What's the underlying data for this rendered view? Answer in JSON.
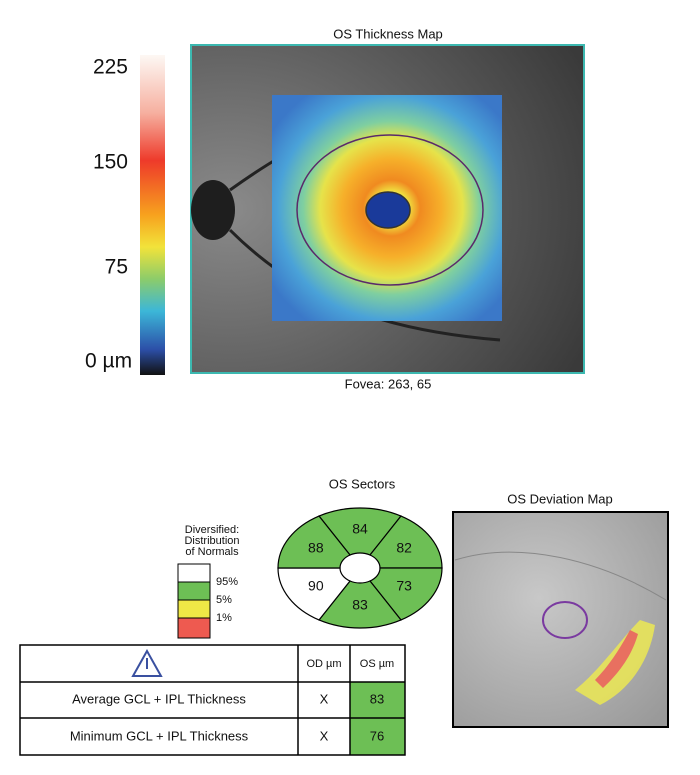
{
  "thickness_map": {
    "title": "OS Thickness Map",
    "fovea": "Fovea: 263, 65",
    "scale_labels": [
      "225",
      "150",
      "75",
      "0 µm"
    ]
  },
  "sectors": {
    "title": "OS Sectors",
    "values": [
      84,
      82,
      73,
      83,
      90,
      88
    ]
  },
  "legend": {
    "title": [
      "Diversified:",
      "Distribution",
      "of Normals"
    ],
    "labels": [
      "95%",
      "5%",
      "1%"
    ]
  },
  "table": {
    "headers": [
      "OD µm",
      "OS µm"
    ],
    "rows": [
      [
        "Average GCL + IPL Thickness",
        "X",
        83
      ],
      [
        "Minimum GCL + IPL Thickness",
        "X",
        76
      ]
    ]
  },
  "deviation_map": {
    "title": "OS Deviation Map"
  }
}
